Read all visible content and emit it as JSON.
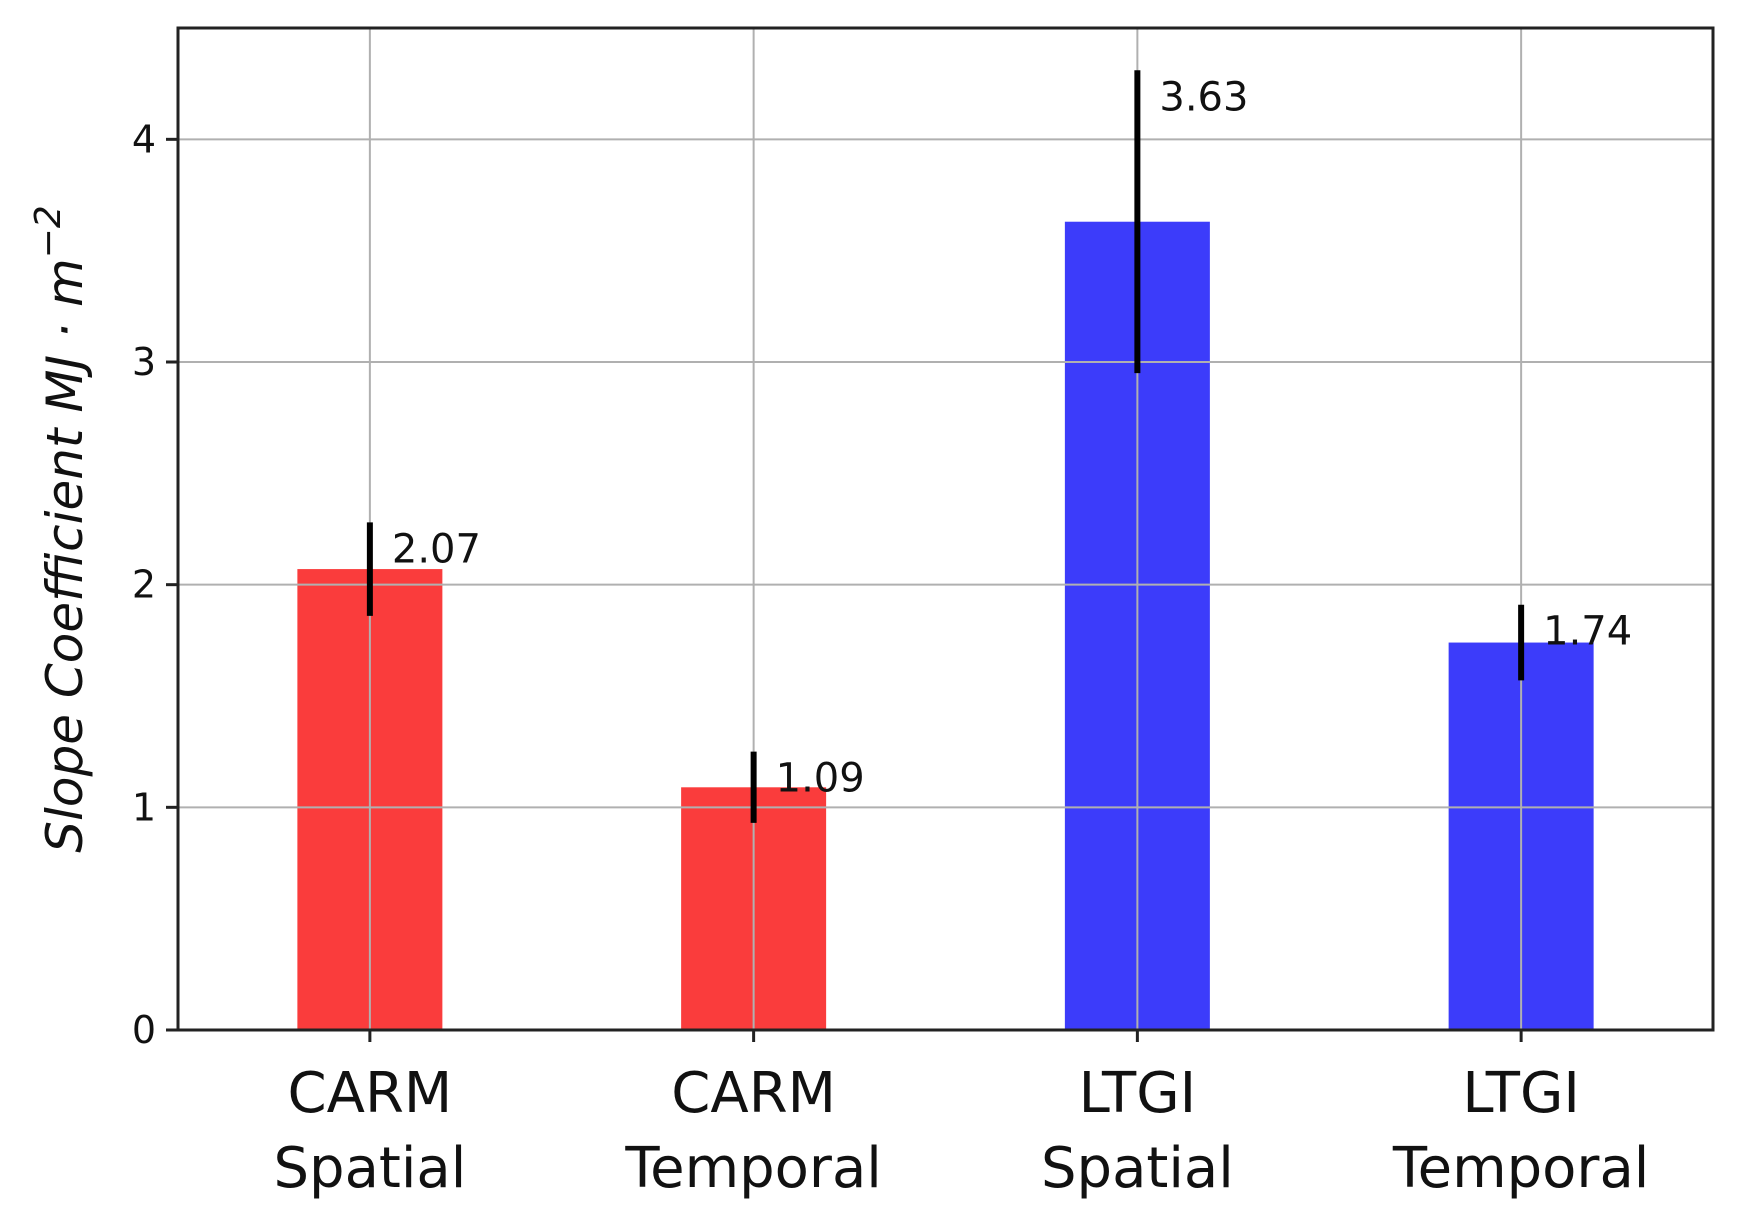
{
  "chart_data": {
    "type": "bar",
    "categories": [
      [
        "CARM",
        "Spatial"
      ],
      [
        "CARM",
        "Temporal"
      ],
      [
        "LTGI",
        "Spatial"
      ],
      [
        "LTGI",
        "Temporal"
      ]
    ],
    "values": [
      2.07,
      1.09,
      3.63,
      1.74
    ],
    "value_labels": [
      "2.07",
      "1.09",
      "3.63",
      "1.74"
    ],
    "error_low": [
      1.86,
      0.93,
      2.95,
      1.57
    ],
    "error_high": [
      2.28,
      1.25,
      4.31,
      1.91
    ],
    "colors": [
      "#fa3c3c",
      "#fa3c3c",
      "#3c3cfa",
      "#3c3cfa"
    ],
    "error_color": "#000000",
    "ylabel": "Slope Coefficient MJ · m",
    "ylabel_superscript": "−2",
    "ylim": [
      0,
      4.5
    ],
    "yticks": [
      0,
      1,
      2,
      3,
      4
    ],
    "ytick_labels": [
      "0",
      "1",
      "2",
      "3",
      "4"
    ],
    "grid": true
  }
}
